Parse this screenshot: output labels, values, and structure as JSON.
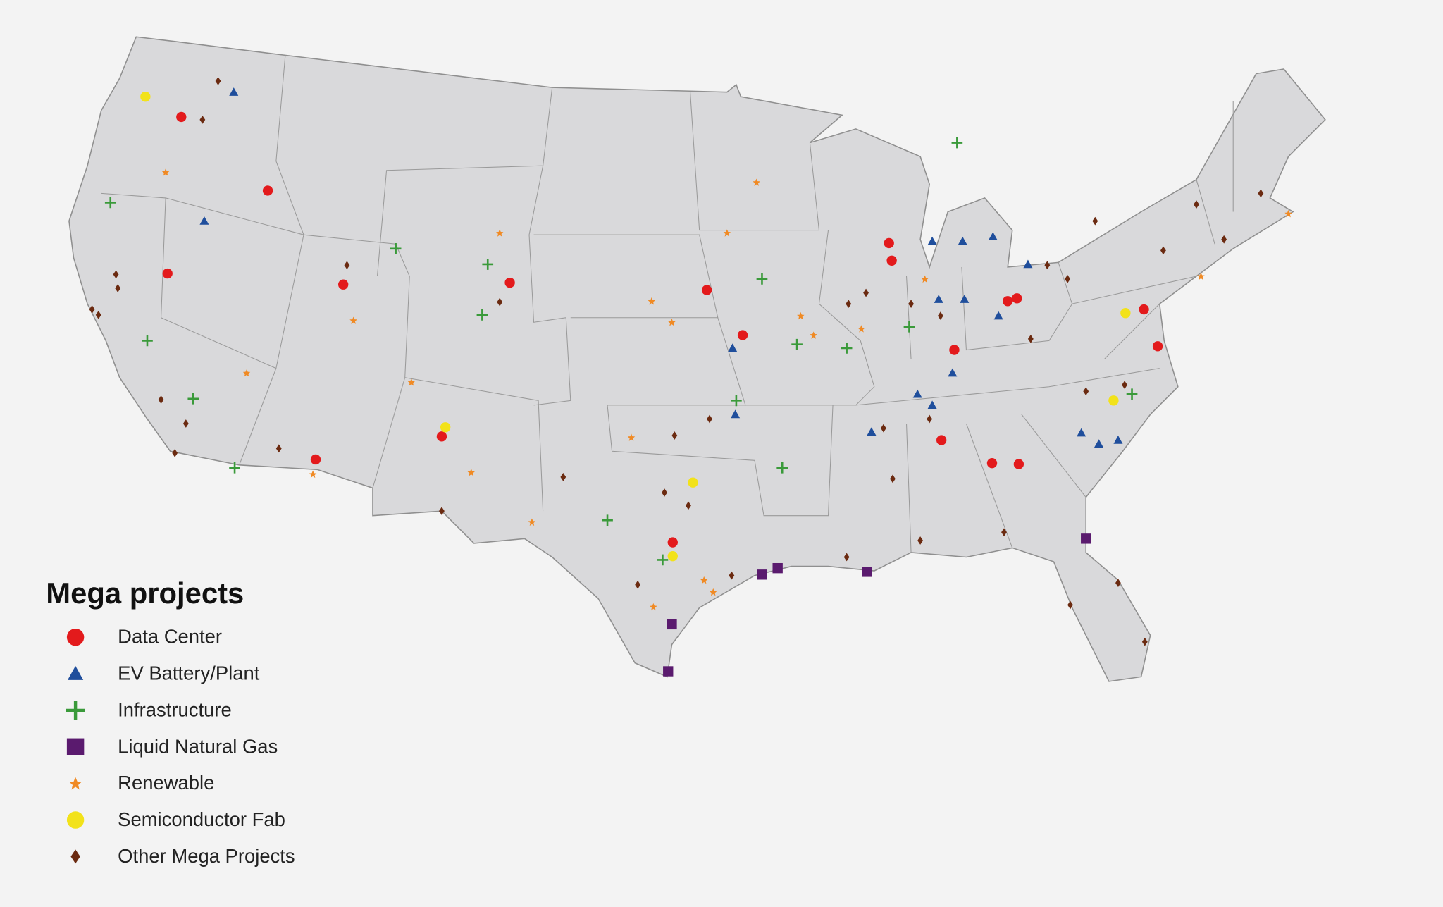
{
  "legend": {
    "title": "Mega projects",
    "items": [
      {
        "label": "Data Center",
        "color": "#e31a1c"
      },
      {
        "label": "EV Battery/Plant",
        "color": "#1f4e9c"
      },
      {
        "label": "Infrastructure",
        "color": "#3a9a3a"
      },
      {
        "label": "Liquid Natural Gas",
        "color": "#5a1a6e"
      },
      {
        "label": "Renewable",
        "color": "#f08a24"
      },
      {
        "label": "Semiconductor Fab",
        "color": "#f2e21a"
      },
      {
        "label": "Other Mega Projects",
        "color": "#6b2a10"
      }
    ]
  }
}
